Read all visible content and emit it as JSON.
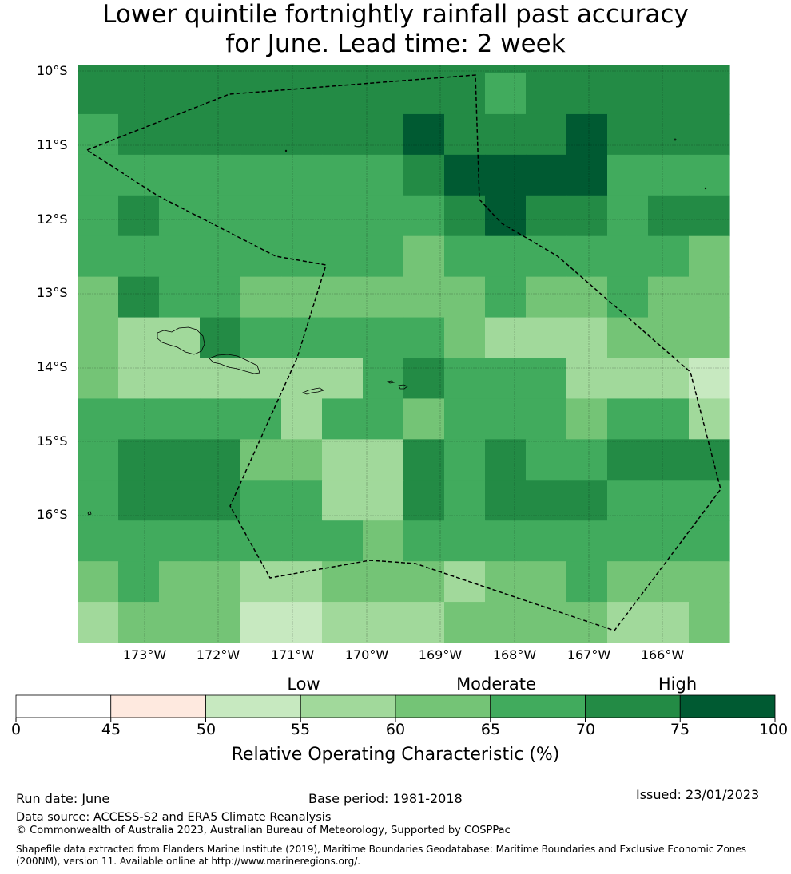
{
  "title": {
    "line1": "Lower quintile fortnightly rainfall past accuracy",
    "line2": "for June. Lead time: 2 week"
  },
  "map": {
    "lat_labels": [
      "10°S",
      "11°S",
      "12°S",
      "13°S",
      "14°S",
      "15°S",
      "16°S"
    ],
    "lon_labels": [
      "173°W",
      "172°W",
      "171°W",
      "170°W",
      "169°W",
      "168°W",
      "167°W",
      "166°W"
    ],
    "grid_roc_values": [
      [
        72,
        72,
        72,
        72,
        72,
        72,
        72,
        72,
        72,
        72,
        72,
        72,
        72,
        72,
        72,
        72
      ],
      [
        72,
        72,
        72,
        72,
        72,
        72,
        72,
        72,
        72,
        72,
        68,
        72,
        72,
        72,
        72,
        72
      ],
      [
        68,
        72,
        72,
        72,
        72,
        72,
        72,
        72,
        78,
        72,
        72,
        72,
        78,
        72,
        72,
        72
      ],
      [
        68,
        68,
        68,
        68,
        68,
        68,
        68,
        68,
        72,
        78,
        78,
        78,
        78,
        68,
        68,
        68
      ],
      [
        68,
        72,
        68,
        68,
        68,
        68,
        68,
        68,
        68,
        72,
        78,
        72,
        72,
        68,
        72,
        72
      ],
      [
        68,
        68,
        68,
        68,
        68,
        68,
        68,
        68,
        63,
        68,
        68,
        68,
        68,
        68,
        68,
        63
      ],
      [
        63,
        72,
        68,
        68,
        63,
        63,
        63,
        63,
        63,
        63,
        68,
        63,
        63,
        68,
        63,
        63
      ],
      [
        63,
        58,
        58,
        72,
        68,
        68,
        68,
        68,
        68,
        63,
        58,
        58,
        58,
        63,
        63,
        63
      ],
      [
        63,
        58,
        58,
        58,
        58,
        58,
        58,
        68,
        72,
        68,
        68,
        68,
        58,
        58,
        58,
        53
      ],
      [
        68,
        68,
        68,
        68,
        68,
        58,
        68,
        68,
        63,
        68,
        68,
        68,
        63,
        68,
        68,
        58
      ],
      [
        68,
        72,
        72,
        72,
        63,
        63,
        58,
        58,
        72,
        68,
        72,
        68,
        68,
        72,
        72,
        72
      ],
      [
        68,
        72,
        72,
        72,
        68,
        68,
        58,
        58,
        72,
        68,
        72,
        72,
        72,
        68,
        68,
        68
      ],
      [
        68,
        68,
        68,
        68,
        68,
        68,
        68,
        63,
        68,
        68,
        68,
        68,
        68,
        68,
        68,
        68
      ],
      [
        63,
        68,
        63,
        63,
        58,
        58,
        63,
        63,
        63,
        58,
        63,
        63,
        68,
        63,
        63,
        63
      ],
      [
        58,
        63,
        63,
        63,
        53,
        53,
        58,
        58,
        58,
        63,
        63,
        63,
        63,
        58,
        58,
        63
      ]
    ]
  },
  "colorbar": {
    "category_labels": [
      "Low",
      "Moderate",
      "High"
    ],
    "ticks": [
      "0",
      "45",
      "50",
      "55",
      "60",
      "65",
      "70",
      "75",
      "100"
    ],
    "colors": [
      "#ffffff",
      "#fee9df",
      "#c7e9c0",
      "#a1d99b",
      "#74c476",
      "#41ab5d",
      "#238b45",
      "#005a32"
    ],
    "title": "Relative Operating Characteristic (%)"
  },
  "footer": {
    "run_date": "Run date: June",
    "base_period": "Base period: 1981-2018",
    "issued": "Issued: 23/01/2023",
    "data_source": "Data source: ACCESS-S2 and ERA5 Climate Reanalysis",
    "copyright": "© Commonwealth of Australia 2023, Australian Bureau of Meteorology, Supported by COSPPac",
    "shapefile_note": "Shapefile data extracted from Flanders Marine Institute (2019), Maritime Boundaries Geodatabase: Maritime Boundaries and Exclusive Economic Zones (200NM), version 11. Available online at http://www.marineregions.org/."
  }
}
